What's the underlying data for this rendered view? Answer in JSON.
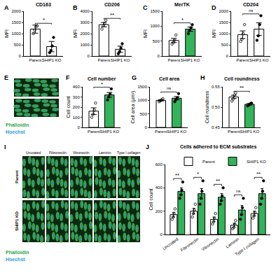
{
  "chart_data": [
    {
      "panel": "A",
      "type": "bar",
      "title": "CD163",
      "y_label": "MFI",
      "categories": [
        "Parent",
        "SHIP1 KO"
      ],
      "values": [
        1200,
        420
      ],
      "errors": [
        180,
        230
      ],
      "points": [
        [
          1000,
          1150,
          1300,
          1350
        ],
        [
          150,
          250,
          450,
          830
        ]
      ],
      "colors": [
        "#ffffff",
        "#ffffff"
      ],
      "ylim": [
        0,
        2000
      ],
      "yticks": [
        0,
        500,
        1000,
        1500,
        2000
      ],
      "significance": "*"
    },
    {
      "panel": "B",
      "type": "bar",
      "title": "CD206",
      "y_label": "MFI",
      "categories": [
        "Parent",
        "SHIP1 KO"
      ],
      "values": [
        2800,
        600
      ],
      "errors": [
        200,
        280
      ],
      "points": [
        [
          2400,
          2700,
          2900,
          3200
        ],
        [
          200,
          400,
          700,
          1100
        ]
      ],
      "colors": [
        "#ffffff",
        "#ffffff"
      ],
      "ylim": [
        0,
        4000
      ],
      "yticks": [
        0,
        1000,
        2000,
        3000,
        4000
      ],
      "significance": "**"
    },
    {
      "panel": "C",
      "type": "bar",
      "title": "MerTK",
      "y_label": "MFI",
      "categories": [
        "Parent",
        "SHIP1 KO"
      ],
      "values": [
        520,
        900
      ],
      "errors": [
        70,
        70
      ],
      "points": [
        [
          400,
          450,
          530,
          700
        ],
        [
          750,
          850,
          950,
          1050
        ]
      ],
      "colors": [
        "#ffffff",
        "#33b35a"
      ],
      "ylim": [
        0,
        1500
      ],
      "yticks": [
        0,
        500,
        1000,
        1500
      ],
      "significance": "*"
    },
    {
      "panel": "D",
      "type": "bar",
      "title": "CD204",
      "y_label": "MFI",
      "categories": [
        "Parent",
        "SHIP1 KO"
      ],
      "values": [
        950,
        1200
      ],
      "errors": [
        170,
        280
      ],
      "points": [
        [
          650,
          750,
          1000,
          1400
        ],
        [
          700,
          900,
          1400,
          1800
        ]
      ],
      "colors": [
        "#ffffff",
        "#ffffff"
      ],
      "ylim": [
        0,
        2000
      ],
      "yticks": [
        0,
        500,
        1000,
        1500,
        2000
      ],
      "significance": "ns"
    },
    {
      "panel": "F",
      "type": "bar",
      "title": "Cell number",
      "y_label": "Cell count",
      "categories": [
        "Parent",
        "SHIP1 KO"
      ],
      "values": [
        160,
        320
      ],
      "errors": [
        33,
        24
      ],
      "points": [
        [
          100,
          130,
          170,
          240
        ],
        [
          270,
          300,
          330,
          380
        ]
      ],
      "colors": [
        "#ffffff",
        "#33b35a"
      ],
      "ylim": [
        0,
        400
      ],
      "yticks": [
        0,
        100,
        200,
        300,
        400
      ],
      "significance": "*"
    },
    {
      "panel": "G",
      "type": "bar",
      "title": "Cell area",
      "y_label": "Cell area (µm²)",
      "categories": [
        "Parent",
        "SHIP1 KO"
      ],
      "values": [
        1000,
        1080
      ],
      "errors": [
        25,
        60
      ],
      "points": [
        [
          950,
          980,
          1020,
          1060
        ],
        [
          950,
          1030,
          1090,
          1250
        ]
      ],
      "colors": [
        "#ffffff",
        "#33b35a"
      ],
      "ylim": [
        0,
        1500
      ],
      "yticks": [
        0,
        500,
        1000,
        1500
      ],
      "significance": "ns"
    },
    {
      "panel": "H",
      "type": "bar",
      "title": "Cell roundness",
      "y_label": "Cell roundness",
      "categories": [
        "Parent",
        "SHIP1 KO"
      ],
      "values": [
        0.525,
        0.507
      ],
      "errors": [
        0.004,
        0.002
      ],
      "points": [
        [
          0.515,
          0.52,
          0.53,
          0.535
        ],
        [
          0.503,
          0.505,
          0.508,
          0.51
        ]
      ],
      "colors": [
        "#ffffff",
        "#33b35a"
      ],
      "ylim": [
        0.45,
        0.55
      ],
      "yticks": [
        0.45,
        {
          "value": 0.5,
          "label": "0.50"
        },
        0.55
      ],
      "significance": "**"
    },
    {
      "panel": "J",
      "type": "bar",
      "title": "Cells adhered to ECM substrates",
      "y_label": "Cell count",
      "categories": [
        "Uncoated",
        "Fibronectin",
        "Vitronectin",
        "Laminin",
        "Type I collagen"
      ],
      "series": [
        {
          "name": "Parent",
          "color": "#ffffff",
          "values": [
            170,
            200,
            130,
            80,
            180
          ],
          "errors": [
            20,
            24,
            20,
            15,
            20
          ],
          "points": [
            [
              130,
              150,
              180,
              220
            ],
            [
              150,
              180,
              210,
              260
            ],
            [
              90,
              110,
              140,
              180
            ],
            [
              50,
              60,
              90,
              120
            ],
            [
              140,
              160,
              190,
              230
            ]
          ]
        },
        {
          "name": "SHIP1 KO",
          "color": "#33b35a",
          "values": [
            370,
            350,
            320,
            210,
            350
          ],
          "errors": [
            30,
            43,
            30,
            38,
            43
          ],
          "points": [
            [
              310,
              340,
              380,
              450
            ],
            [
              260,
              310,
              370,
              460
            ],
            [
              260,
              290,
              330,
              400
            ],
            [
              130,
              170,
              230,
              310
            ],
            [
              260,
              310,
              370,
              460
            ]
          ]
        }
      ],
      "ylim": [
        0,
        600
      ],
      "yticks": [
        0,
        200,
        400,
        600
      ],
      "legend": "top right",
      "significance": [
        "**",
        "*",
        "**",
        "ns",
        "**"
      ]
    }
  ],
  "micrographs": [
    {
      "panel": "E",
      "stain_labels": [
        {
          "text": "Phalloidin",
          "color": "#2faa4a"
        },
        {
          "text": "Hoechst",
          "color": "#2a9fd6"
        }
      ]
    },
    {
      "panel": "I",
      "columns": [
        "Uncoated",
        "Fibronectin",
        "Vitronectin",
        "Laminin",
        "Type I collagen"
      ],
      "rows": [
        "Parent",
        "SHIP1 KO"
      ],
      "stain_labels": [
        {
          "text": "Phalloidin",
          "color": "#2faa4a"
        },
        {
          "text": "Hoechst",
          "color": "#2a9fd6"
        }
      ]
    }
  ]
}
